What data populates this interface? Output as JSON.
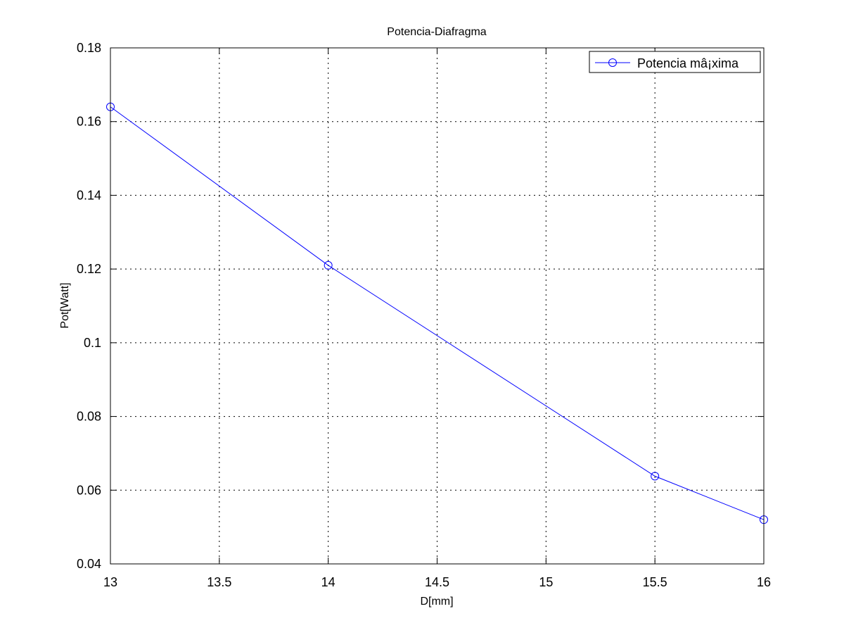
{
  "chart_data": {
    "type": "line",
    "title": "Potencia-Diafragma",
    "xlabel": "D[mm]",
    "ylabel": "Pot[Watt]",
    "xlim": [
      13,
      16
    ],
    "ylim": [
      0.04,
      0.18
    ],
    "xticks": [
      13,
      13.5,
      14,
      14.5,
      15,
      15.5,
      16
    ],
    "xtick_labels": [
      "13",
      "13.5",
      "14",
      "14.5",
      "15",
      "15.5",
      "16"
    ],
    "yticks": [
      0.04,
      0.06,
      0.08,
      0.1,
      0.12,
      0.14,
      0.16,
      0.18
    ],
    "ytick_labels": [
      "0.04",
      "0.06",
      "0.08",
      "0.1",
      "0.12",
      "0.14",
      "0.16",
      "0.18"
    ],
    "grid": true,
    "legend_position": "top-right",
    "series": [
      {
        "name": "Potencia mâ¡xima",
        "color": "#0000ff",
        "marker": "circle",
        "x": [
          13,
          14,
          15.5,
          16
        ],
        "y": [
          0.164,
          0.121,
          0.0638,
          0.052
        ]
      }
    ]
  }
}
